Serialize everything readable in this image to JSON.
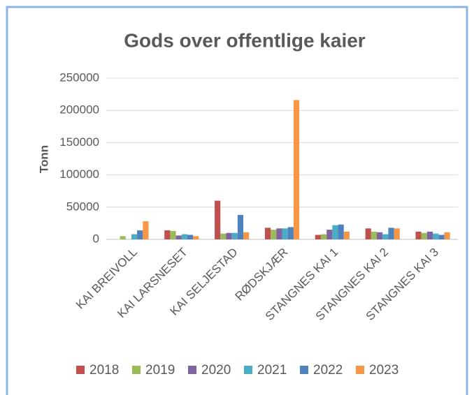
{
  "chart_data": {
    "type": "bar",
    "title": "Gods over offentlige kaier",
    "y_label": "Tonn",
    "categories": [
      "KAI BREIVOLL",
      "KAI LARSNESET",
      "KAI SELJESTAD",
      "RØDSKJÆR",
      "STANGNES KAI 1",
      "STANGNES KAI 2",
      "STANGNES KAI 3"
    ],
    "series": [
      {
        "name": "2018",
        "color": "#c0504d",
        "values": [
          0,
          14000,
          60000,
          18000,
          7000,
          17000,
          12000
        ]
      },
      {
        "name": "2019",
        "color": "#9bbb59",
        "values": [
          5000,
          13000,
          9000,
          15000,
          8000,
          12000,
          10000
        ]
      },
      {
        "name": "2020",
        "color": "#8064a2",
        "values": [
          0,
          6000,
          10000,
          17000,
          15000,
          11000,
          12000
        ]
      },
      {
        "name": "2021",
        "color": "#4bacc6",
        "values": [
          8000,
          8000,
          10000,
          17000,
          22000,
          8000,
          9000
        ]
      },
      {
        "name": "2022",
        "color": "#4f81bd",
        "values": [
          14000,
          7000,
          38000,
          19000,
          23000,
          18000,
          7000
        ]
      },
      {
        "name": "2023",
        "color": "#f79646",
        "values": [
          28000,
          5000,
          11000,
          216000,
          12000,
          17000,
          11000
        ]
      }
    ],
    "ylim": [
      0,
      250000
    ],
    "yticks": [
      0,
      50000,
      100000,
      150000,
      200000,
      250000
    ],
    "grid": true,
    "legend": "bottom"
  }
}
